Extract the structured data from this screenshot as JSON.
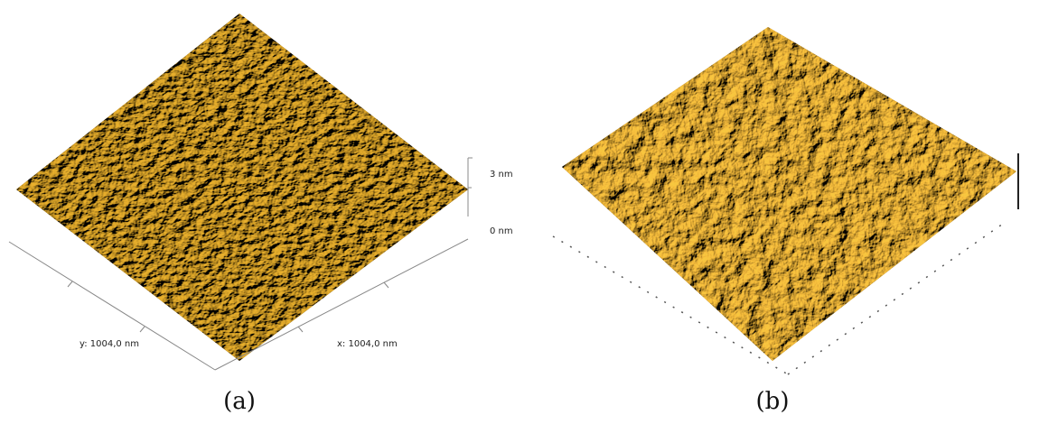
{
  "panels": [
    {
      "scale_top": "3 nm",
      "scale_bottom": "0 nm",
      "y_axis": "y: 1004,0 nm",
      "x_axis": "x: 1004,0 nm",
      "caption": "(a)"
    },
    {
      "caption": "(b)"
    }
  ]
}
